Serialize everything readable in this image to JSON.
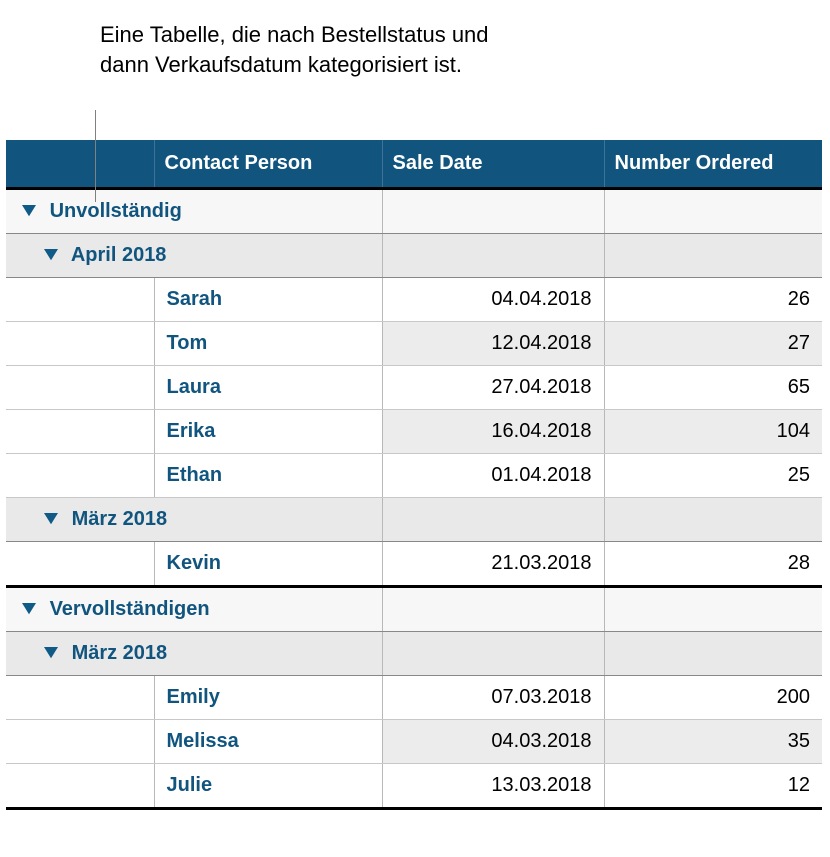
{
  "caption": "Eine Tabelle, die nach Bestellstatus und dann Verkaufsdatum kategorisiert ist.",
  "colors": {
    "header_bg": "#11557f",
    "header_text": "#ffffff",
    "link_text": "#11557f",
    "group_top_bg": "#f7f7f7",
    "group_sub_bg": "#e9e9e9",
    "row_alt_bg": "#ececec",
    "border_heavy": "#000000",
    "triangle": "#0f5a86"
  },
  "columns": {
    "c1": "",
    "c2": "Contact Person",
    "c3": "Sale Date",
    "c4": "Number Ordered"
  },
  "groups": [
    {
      "label": "Unvollständig",
      "subgroups": [
        {
          "label": "April 2018",
          "rows": [
            {
              "name": "Sarah",
              "date": "04.04.2018",
              "num": "26"
            },
            {
              "name": "Tom",
              "date": "12.04.2018",
              "num": "27"
            },
            {
              "name": "Laura",
              "date": "27.04.2018",
              "num": "65"
            },
            {
              "name": "Erika",
              "date": "16.04.2018",
              "num": "104"
            },
            {
              "name": "Ethan",
              "date": "01.04.2018",
              "num": "25"
            }
          ]
        },
        {
          "label": "März 2018",
          "rows": [
            {
              "name": "Kevin",
              "date": "21.03.2018",
              "num": "28"
            }
          ]
        }
      ]
    },
    {
      "label": "Vervollständigen",
      "subgroups": [
        {
          "label": "März 2018",
          "rows": [
            {
              "name": "Emily",
              "date": "07.03.2018",
              "num": "200"
            },
            {
              "name": "Melissa",
              "date": "04.03.2018",
              "num": "35"
            },
            {
              "name": "Julie",
              "date": "13.03.2018",
              "num": "12"
            }
          ]
        }
      ]
    }
  ]
}
